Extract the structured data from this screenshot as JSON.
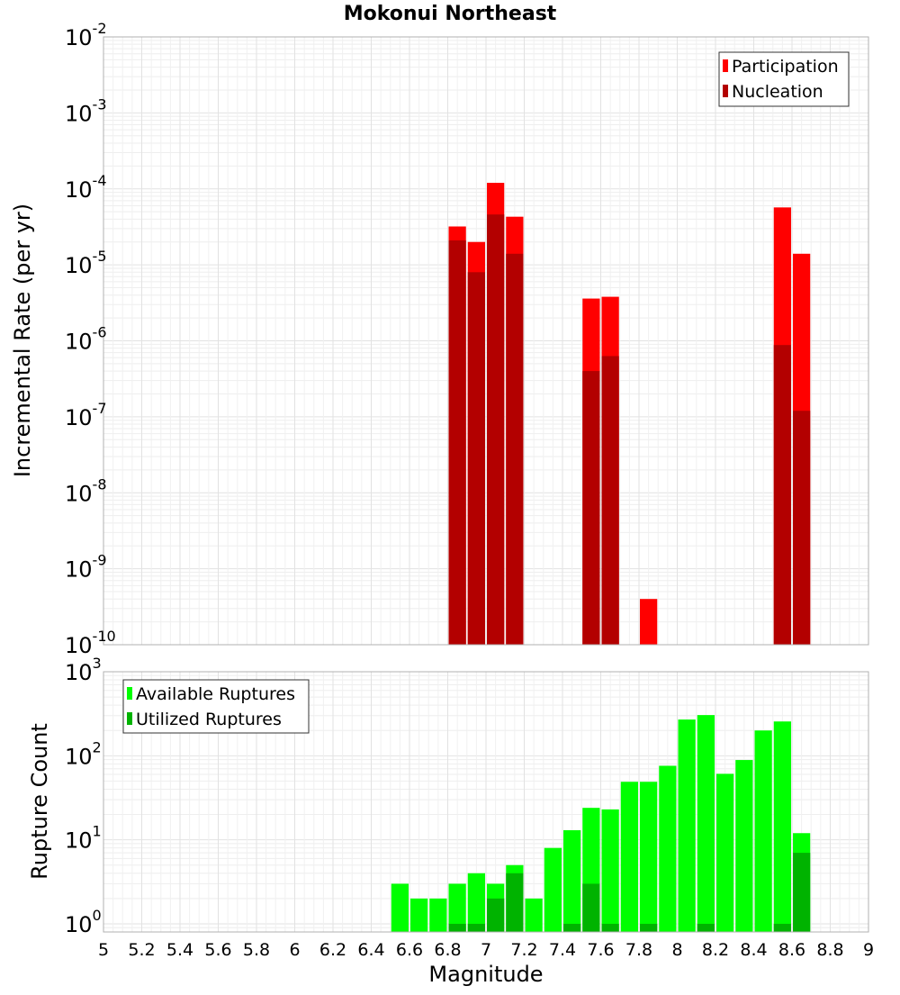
{
  "chart_data": [
    {
      "type": "bar",
      "title": "Mokonui Northeast",
      "xlabel": "",
      "ylabel": "Incremental Rate (per yr)",
      "yscale": "log",
      "ylim": [
        1e-10,
        0.01
      ],
      "xlim": [
        5,
        9
      ],
      "bin_width": 0.1,
      "ytick_labels": [
        {
          "base": "10",
          "exp": "-10"
        },
        {
          "base": "10",
          "exp": "-9"
        },
        {
          "base": "10",
          "exp": "-8"
        },
        {
          "base": "10",
          "exp": "-7"
        },
        {
          "base": "10",
          "exp": "-6"
        },
        {
          "base": "10",
          "exp": "-5"
        },
        {
          "base": "10",
          "exp": "-4"
        },
        {
          "base": "10",
          "exp": "-3"
        },
        {
          "base": "10",
          "exp": "-2"
        }
      ],
      "legend": {
        "position": "top-right",
        "entries": [
          "Participation",
          "Nucleation"
        ]
      },
      "grid": true,
      "series": [
        {
          "name": "Participation",
          "color": "#ff0000",
          "points": [
            {
              "x": 6.85,
              "y": 3.2e-05
            },
            {
              "x": 6.95,
              "y": 2e-05
            },
            {
              "x": 7.05,
              "y": 0.00012
            },
            {
              "x": 7.15,
              "y": 4.3e-05
            },
            {
              "x": 7.55,
              "y": 3.6e-06
            },
            {
              "x": 7.65,
              "y": 3.8e-06
            },
            {
              "x": 7.85,
              "y": 4e-10
            },
            {
              "x": 8.55,
              "y": 5.7e-05
            },
            {
              "x": 8.65,
              "y": 1.4e-05
            }
          ]
        },
        {
          "name": "Nucleation",
          "color": "#b30000",
          "points": [
            {
              "x": 6.85,
              "y": 2.1e-05
            },
            {
              "x": 6.95,
              "y": 8e-06
            },
            {
              "x": 7.05,
              "y": 4.6e-05
            },
            {
              "x": 7.15,
              "y": 1.4e-05
            },
            {
              "x": 7.55,
              "y": 4e-07
            },
            {
              "x": 7.65,
              "y": 6.3e-07
            },
            {
              "x": 8.55,
              "y": 8.8e-07
            },
            {
              "x": 8.65,
              "y": 1.2e-07
            }
          ]
        }
      ]
    },
    {
      "type": "bar",
      "title": "",
      "xlabel": "Magnitude",
      "ylabel": "Rupture Count",
      "yscale": "log",
      "ylim": [
        0.8,
        1000
      ],
      "xlim": [
        5,
        9
      ],
      "bin_width": 0.1,
      "xtick_labels": [
        "5",
        "5.2",
        "5.4",
        "5.6",
        "5.8",
        "6",
        "6.2",
        "6.4",
        "6.6",
        "6.8",
        "7",
        "7.2",
        "7.4",
        "7.6",
        "7.8",
        "8",
        "8.2",
        "8.4",
        "8.6",
        "8.8",
        "9"
      ],
      "ytick_labels": [
        {
          "base": "10",
          "exp": "0"
        },
        {
          "base": "10",
          "exp": "1"
        },
        {
          "base": "10",
          "exp": "2"
        },
        {
          "base": "10",
          "exp": "3"
        }
      ],
      "legend": {
        "position": "top-left",
        "entries": [
          "Available Ruptures",
          "Utilized Ruptures"
        ]
      },
      "grid": true,
      "series": [
        {
          "name": "Available Ruptures",
          "color": "#00ff00",
          "points": [
            {
              "x": 6.55,
              "y": 3
            },
            {
              "x": 6.65,
              "y": 2
            },
            {
              "x": 6.75,
              "y": 2
            },
            {
              "x": 6.85,
              "y": 3
            },
            {
              "x": 6.95,
              "y": 4
            },
            {
              "x": 7.05,
              "y": 3
            },
            {
              "x": 7.15,
              "y": 5
            },
            {
              "x": 7.25,
              "y": 2
            },
            {
              "x": 7.35,
              "y": 8
            },
            {
              "x": 7.45,
              "y": 13
            },
            {
              "x": 7.55,
              "y": 24
            },
            {
              "x": 7.65,
              "y": 23
            },
            {
              "x": 7.75,
              "y": 49
            },
            {
              "x": 7.85,
              "y": 49
            },
            {
              "x": 7.95,
              "y": 76
            },
            {
              "x": 8.05,
              "y": 270
            },
            {
              "x": 8.15,
              "y": 305
            },
            {
              "x": 8.25,
              "y": 61
            },
            {
              "x": 8.35,
              "y": 89
            },
            {
              "x": 8.45,
              "y": 200
            },
            {
              "x": 8.55,
              "y": 256
            },
            {
              "x": 8.65,
              "y": 12
            }
          ]
        },
        {
          "name": "Utilized Ruptures",
          "color": "#00b300",
          "points": [
            {
              "x": 6.85,
              "y": 1
            },
            {
              "x": 6.95,
              "y": 1
            },
            {
              "x": 7.05,
              "y": 2
            },
            {
              "x": 7.15,
              "y": 4
            },
            {
              "x": 7.45,
              "y": 1
            },
            {
              "x": 7.55,
              "y": 3
            },
            {
              "x": 7.65,
              "y": 1
            },
            {
              "x": 7.85,
              "y": 1
            },
            {
              "x": 8.15,
              "y": 1
            },
            {
              "x": 8.55,
              "y": 1
            },
            {
              "x": 8.65,
              "y": 7
            }
          ]
        }
      ]
    }
  ]
}
